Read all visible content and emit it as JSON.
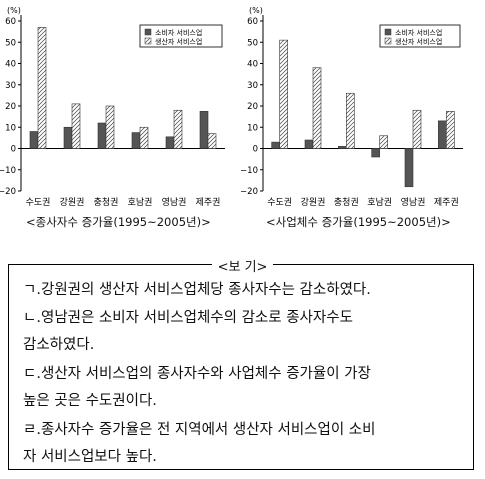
{
  "chart_data": [
    {
      "type": "bar",
      "unit": "(%)",
      "categories": [
        "수도권",
        "강원권",
        "충청권",
        "호남권",
        "영남권",
        "제주권"
      ],
      "series": [
        {
          "name": "소비자 서비스업",
          "pattern": "solid",
          "color": "#555555",
          "values": [
            8,
            10,
            12,
            7.5,
            5.5,
            17.5
          ]
        },
        {
          "name": "생산자 서비스업",
          "pattern": "hatch",
          "color": "#ffffff",
          "values": [
            57,
            21,
            20,
            10,
            18,
            7
          ]
        }
      ],
      "yticks": [
        60,
        50,
        40,
        30,
        20,
        10,
        0,
        -10,
        -20
      ],
      "ylim": [
        -20,
        60
      ],
      "legend_position": "top-right",
      "caption": "<종사자수 증가율(1995~2005년)>"
    },
    {
      "type": "bar",
      "unit": "(%)",
      "categories": [
        "수도권",
        "강원권",
        "충청권",
        "호남권",
        "영남권",
        "제주권"
      ],
      "series": [
        {
          "name": "소비자 서비스업",
          "pattern": "solid",
          "color": "#555555",
          "values": [
            3,
            4,
            1,
            -4,
            -18,
            13
          ]
        },
        {
          "name": "생산자 서비스업",
          "pattern": "hatch",
          "color": "#ffffff",
          "values": [
            51,
            38,
            26,
            6,
            18,
            17.5
          ]
        }
      ],
      "yticks": [
        60,
        50,
        40,
        30,
        20,
        10,
        0,
        -10,
        -20
      ],
      "ylim": [
        -20,
        60
      ],
      "legend_position": "top-right",
      "caption": "<사업체수 증가율(1995~2005년)>"
    }
  ],
  "box": {
    "title": "<보 기>",
    "statements": [
      {
        "marker": "ㄱ.",
        "line1": "강원권의 생산자 서비스업체당 종사자수는 감소하였다.",
        "line2": ""
      },
      {
        "marker": "ㄴ.",
        "line1": "영남권은 소비자 서비스업체수의 감소로 종사자수도",
        "line2": "감소하였다."
      },
      {
        "marker": "ㄷ.",
        "line1": "생산자 서비스업의 종사자수와 사업체수 증가율이 가장",
        "line2": "높은 곳은 수도권이다."
      },
      {
        "marker": "ㄹ.",
        "line1": "종사자수 증가율은 전 지역에서 생산자 서비스업이 소비",
        "line2": "자 서비스업보다 높다."
      }
    ]
  }
}
